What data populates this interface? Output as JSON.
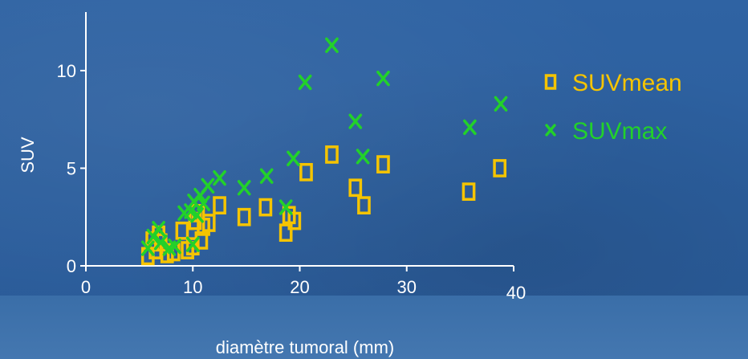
{
  "chart_data": {
    "type": "scatter",
    "title": "",
    "xlabel": "diamètre tumoral (mm)",
    "ylabel": "SUV",
    "xlim": [
      0,
      40
    ],
    "ylim": [
      0,
      13
    ],
    "x_ticks": [
      "0",
      "10",
      "20",
      "30",
      "40"
    ],
    "y_ticks": [
      "0",
      "5",
      "10"
    ],
    "x_tick_values": [
      0,
      10,
      20,
      30,
      40
    ],
    "y_tick_values": [
      0,
      5,
      10
    ],
    "grid": false,
    "legend_position": "right",
    "series": [
      {
        "name": "SUVmean",
        "color": "#f5c400",
        "marker": "square",
        "points": [
          {
            "x": 5.8,
            "y": 0.5
          },
          {
            "x": 6.2,
            "y": 1.3
          },
          {
            "x": 6.5,
            "y": 0.8
          },
          {
            "x": 6.8,
            "y": 1.6
          },
          {
            "x": 7.0,
            "y": 1.2
          },
          {
            "x": 7.6,
            "y": 0.6
          },
          {
            "x": 8.2,
            "y": 0.7
          },
          {
            "x": 9.0,
            "y": 1.8
          },
          {
            "x": 9.5,
            "y": 0.8
          },
          {
            "x": 10.0,
            "y": 1.0
          },
          {
            "x": 10.2,
            "y": 2.3
          },
          {
            "x": 10.5,
            "y": 2.7
          },
          {
            "x": 10.8,
            "y": 1.3
          },
          {
            "x": 11.0,
            "y": 2.0
          },
          {
            "x": 11.5,
            "y": 2.2
          },
          {
            "x": 12.5,
            "y": 3.1
          },
          {
            "x": 14.8,
            "y": 2.5
          },
          {
            "x": 16.8,
            "y": 3.0
          },
          {
            "x": 18.7,
            "y": 1.7
          },
          {
            "x": 19.0,
            "y": 2.6
          },
          {
            "x": 19.5,
            "y": 2.3
          },
          {
            "x": 20.6,
            "y": 4.8
          },
          {
            "x": 23.0,
            "y": 5.7
          },
          {
            "x": 25.2,
            "y": 4.0
          },
          {
            "x": 26.0,
            "y": 3.1
          },
          {
            "x": 27.8,
            "y": 5.2
          },
          {
            "x": 35.8,
            "y": 3.8
          },
          {
            "x": 38.7,
            "y": 5.0
          }
        ]
      },
      {
        "name": "SUVmax",
        "color": "#22d12a",
        "marker": "x",
        "points": [
          {
            "x": 5.8,
            "y": 0.9
          },
          {
            "x": 6.3,
            "y": 1.5
          },
          {
            "x": 6.8,
            "y": 1.9
          },
          {
            "x": 7.0,
            "y": 1.2
          },
          {
            "x": 7.8,
            "y": 0.9
          },
          {
            "x": 8.3,
            "y": 1.0
          },
          {
            "x": 9.2,
            "y": 2.7
          },
          {
            "x": 9.8,
            "y": 2.8
          },
          {
            "x": 10.0,
            "y": 1.1
          },
          {
            "x": 10.1,
            "y": 3.3
          },
          {
            "x": 10.4,
            "y": 2.6
          },
          {
            "x": 10.7,
            "y": 3.6
          },
          {
            "x": 11.0,
            "y": 3.2
          },
          {
            "x": 11.4,
            "y": 4.1
          },
          {
            "x": 12.5,
            "y": 4.5
          },
          {
            "x": 14.8,
            "y": 4.0
          },
          {
            "x": 16.9,
            "y": 4.6
          },
          {
            "x": 18.7,
            "y": 3.0
          },
          {
            "x": 19.4,
            "y": 5.5
          },
          {
            "x": 20.5,
            "y": 9.4
          },
          {
            "x": 23.0,
            "y": 11.3
          },
          {
            "x": 25.2,
            "y": 7.4
          },
          {
            "x": 25.9,
            "y": 5.6
          },
          {
            "x": 27.8,
            "y": 9.6
          },
          {
            "x": 35.9,
            "y": 7.1
          },
          {
            "x": 38.8,
            "y": 8.3
          }
        ]
      }
    ]
  }
}
